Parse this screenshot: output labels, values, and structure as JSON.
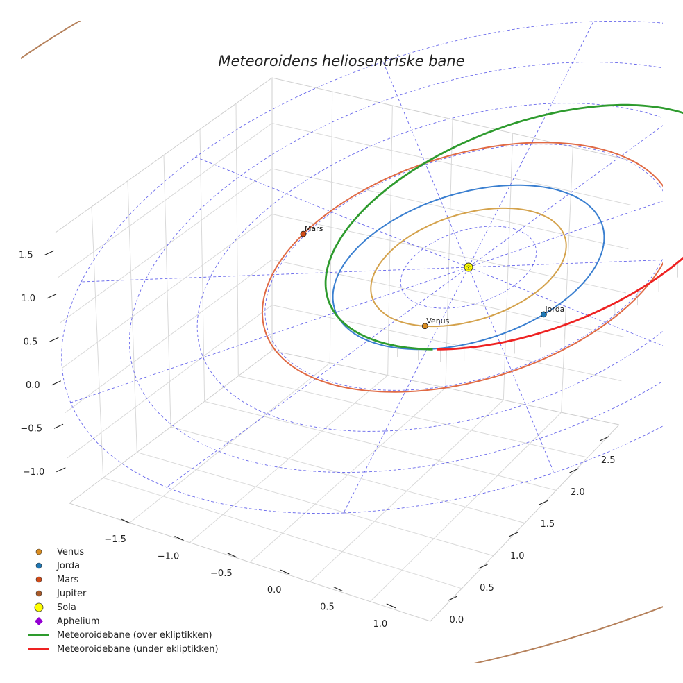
{
  "chart_data": {
    "type": "line",
    "projection": "3d",
    "title": "Meteoroidens heliosentriske bane",
    "xlabel": "",
    "ylabel": "",
    "zlabel": "",
    "x_ticks": [
      "−1.5",
      "−1.0",
      "−0.5",
      "0.0",
      "0.5",
      "1.0"
    ],
    "y_ticks": [
      "0.0",
      "0.5",
      "1.0",
      "1.5",
      "2.0",
      "2.5"
    ],
    "z_ticks": [
      "−1.0",
      "−0.5",
      "0.0",
      "0.5",
      "1.0",
      "1.5"
    ],
    "xlim": [
      -1.8,
      1.2
    ],
    "ylim": [
      -0.3,
      2.8
    ],
    "zlim": [
      -1.3,
      1.7
    ],
    "grid": true,
    "legend_position": "lower-left",
    "planets": [
      {
        "name": "Venus",
        "a": 0.72,
        "color": "#d4a24c",
        "marker": "#d98c1f"
      },
      {
        "name": "Jorda",
        "a": 1.0,
        "color": "#3a7fd0",
        "marker": "#1f77b4"
      },
      {
        "name": "Mars",
        "a": 1.52,
        "color": "#e06a45",
        "marker": "#d04a18"
      },
      {
        "name": "Jupiter",
        "a": 5.2,
        "color": "#b5805a",
        "marker": "#a85a2a"
      }
    ],
    "sun": {
      "name": "Sola",
      "color": "#ffff00"
    },
    "meteoroid_orbit": {
      "a": 1.55,
      "e": 0.37,
      "perihelion_distance_au": 0.98,
      "aphelion_distance_au": 2.12,
      "over_color": "#2e9b2e",
      "under_color": "#ee2222"
    },
    "aphelion": {
      "label": "Aphelium",
      "color": "#9400d3"
    },
    "ecliptic_grid": {
      "rings_au": [
        0.5,
        1,
        1.5,
        2,
        2.5,
        3
      ],
      "color": "#4d4de8"
    },
    "legend": [
      {
        "label": "Venus",
        "kind": "dot",
        "color": "#d98c1f"
      },
      {
        "label": "Jorda",
        "kind": "dot",
        "color": "#1f77b4"
      },
      {
        "label": "Mars",
        "kind": "dot",
        "color": "#d04a18"
      },
      {
        "label": "Jupiter",
        "kind": "dot",
        "color": "#a85a2a"
      },
      {
        "label": "Sola",
        "kind": "bigdot",
        "color": "#ffff00"
      },
      {
        "label": "Aphelium",
        "kind": "diamond",
        "color": "#9400d3"
      },
      {
        "label": "Meteoroidebane (over ekliptikken)",
        "kind": "line",
        "color": "#2e9b2e"
      },
      {
        "label": "Meteoroidebane (under ekliptikken)",
        "kind": "line",
        "color": "#ee2222"
      }
    ]
  }
}
